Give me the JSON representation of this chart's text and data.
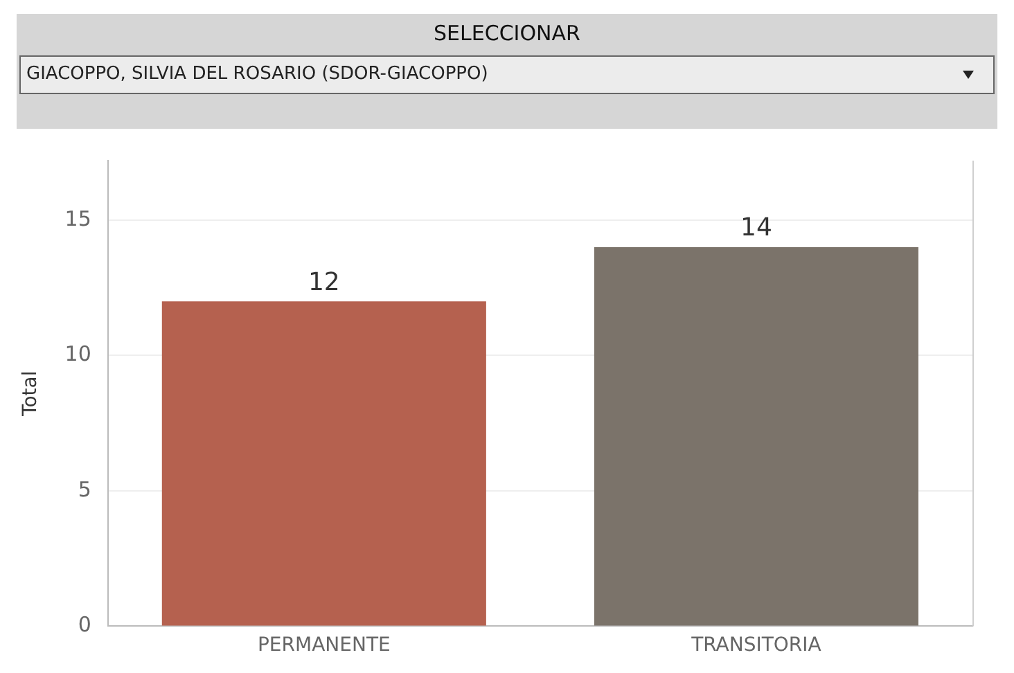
{
  "chart_data": {
    "type": "bar",
    "title": "SELECCIONAR",
    "subtitle": "GIACOPPO, SILVIA DEL ROSARIO (SDOR-GIACOPPO)",
    "ylabel": "Total",
    "categories": [
      "PERMANENTE",
      "TRANSITORIA"
    ],
    "values": [
      12,
      14
    ],
    "colors": [
      "#b5614f",
      "#7b736a"
    ],
    "ylim": [
      0,
      17.2
    ],
    "yticks": [
      0,
      5,
      10,
      15
    ],
    "grid": "y",
    "legend": false,
    "data_labels": true
  }
}
